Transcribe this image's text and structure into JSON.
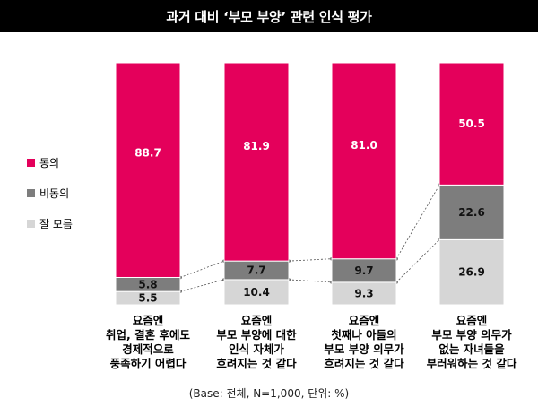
{
  "title": "과거 대비 ‘부모 부양’ 관련 인식 평가",
  "footnote": "(Base: 전체, N=1,000, 단위: %)",
  "colors": {
    "agree": "#E4005B",
    "disagree": "#7D7D7D",
    "dont_know": "#D6D6D6",
    "connector": "#555555"
  },
  "legend": [
    {
      "key": "agree",
      "label": "동의"
    },
    {
      "key": "disagree",
      "label": "비동의"
    },
    {
      "key": "dont_know",
      "label": "잘 모름"
    }
  ],
  "chart_data": {
    "type": "bar",
    "stacked": true,
    "ylim": [
      0,
      100
    ],
    "grid": false,
    "legend_position": "left",
    "categories": [
      [
        "요즘엔",
        "취업, 결혼 후에도",
        "경제적으로",
        "풍족하기 어렵다"
      ],
      [
        "요즘엔",
        "부모 부양에 대한",
        "인식 자체가",
        "흐려지는 것 같다"
      ],
      [
        "요즘엔",
        "첫째나 아들의",
        "부모 부양 의무가",
        "흐려지는 것 같다"
      ],
      [
        "요즘엔",
        "부모 부양 의무가",
        "없는 자녀들을",
        "부러워하는 것 같다"
      ]
    ],
    "series": [
      {
        "name": "잘 모름",
        "key": "dont_know",
        "values": [
          5.5,
          10.4,
          9.3,
          26.9
        ],
        "labels": [
          "5.5",
          "10.4",
          "9.3",
          "26.9"
        ]
      },
      {
        "name": "비동의",
        "key": "disagree",
        "values": [
          5.8,
          7.7,
          9.7,
          22.6
        ],
        "labels": [
          "5.8",
          "7.7",
          "9.7",
          "22.6"
        ]
      },
      {
        "name": "동의",
        "key": "agree",
        "values": [
          88.7,
          81.9,
          81.0,
          50.5
        ],
        "labels": [
          "88.7",
          "81.9",
          "81.0",
          "50.5"
        ]
      }
    ]
  }
}
